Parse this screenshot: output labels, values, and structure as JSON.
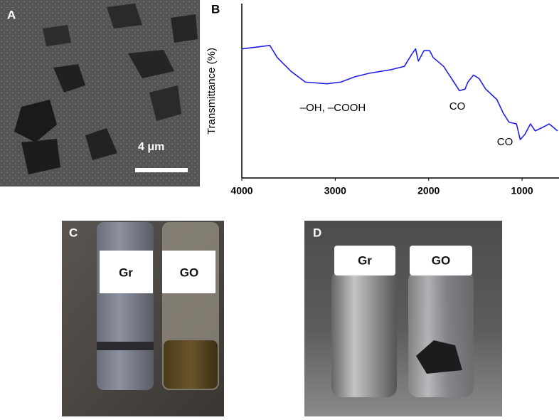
{
  "panel_labels": [
    "A",
    "B",
    "C",
    "D"
  ],
  "scale_bar": "4 μm",
  "vial_labels": {
    "c": [
      "Gr",
      "GO"
    ],
    "d": [
      "Gr",
      "GO"
    ]
  },
  "chart_data": {
    "type": "line",
    "y_label": "Transmittance (%)",
    "x": [
      4000,
      3700,
      3620,
      3470,
      3320,
      3090,
      2940,
      2790,
      2640,
      2410,
      2260,
      2180,
      2140,
      2110,
      2050,
      1990,
      1950,
      1840,
      1730,
      1670,
      1610,
      1580,
      1520,
      1460,
      1390,
      1270,
      1200,
      1140,
      1060,
      1020,
      970,
      910,
      860,
      780,
      710,
      620
    ],
    "series": [
      {
        "color": "#1f1fe8",
        "values": [
          74,
          76,
          69,
          61,
          55,
          54,
          55,
          58,
          60,
          62,
          64,
          71,
          74,
          67,
          73,
          73,
          69,
          64,
          55,
          50,
          51,
          55,
          59,
          57,
          51,
          45,
          37,
          32,
          31,
          22,
          25,
          31,
          27,
          29,
          31,
          27
        ]
      }
    ],
    "xlim": [
      4000,
      620
    ],
    "xticks": [
      4000,
      3000,
      2000,
      1000
    ],
    "ylim": [
      0,
      100
    ],
    "annotations": [
      "–OH, –COOH",
      "CO",
      "CO"
    ]
  }
}
